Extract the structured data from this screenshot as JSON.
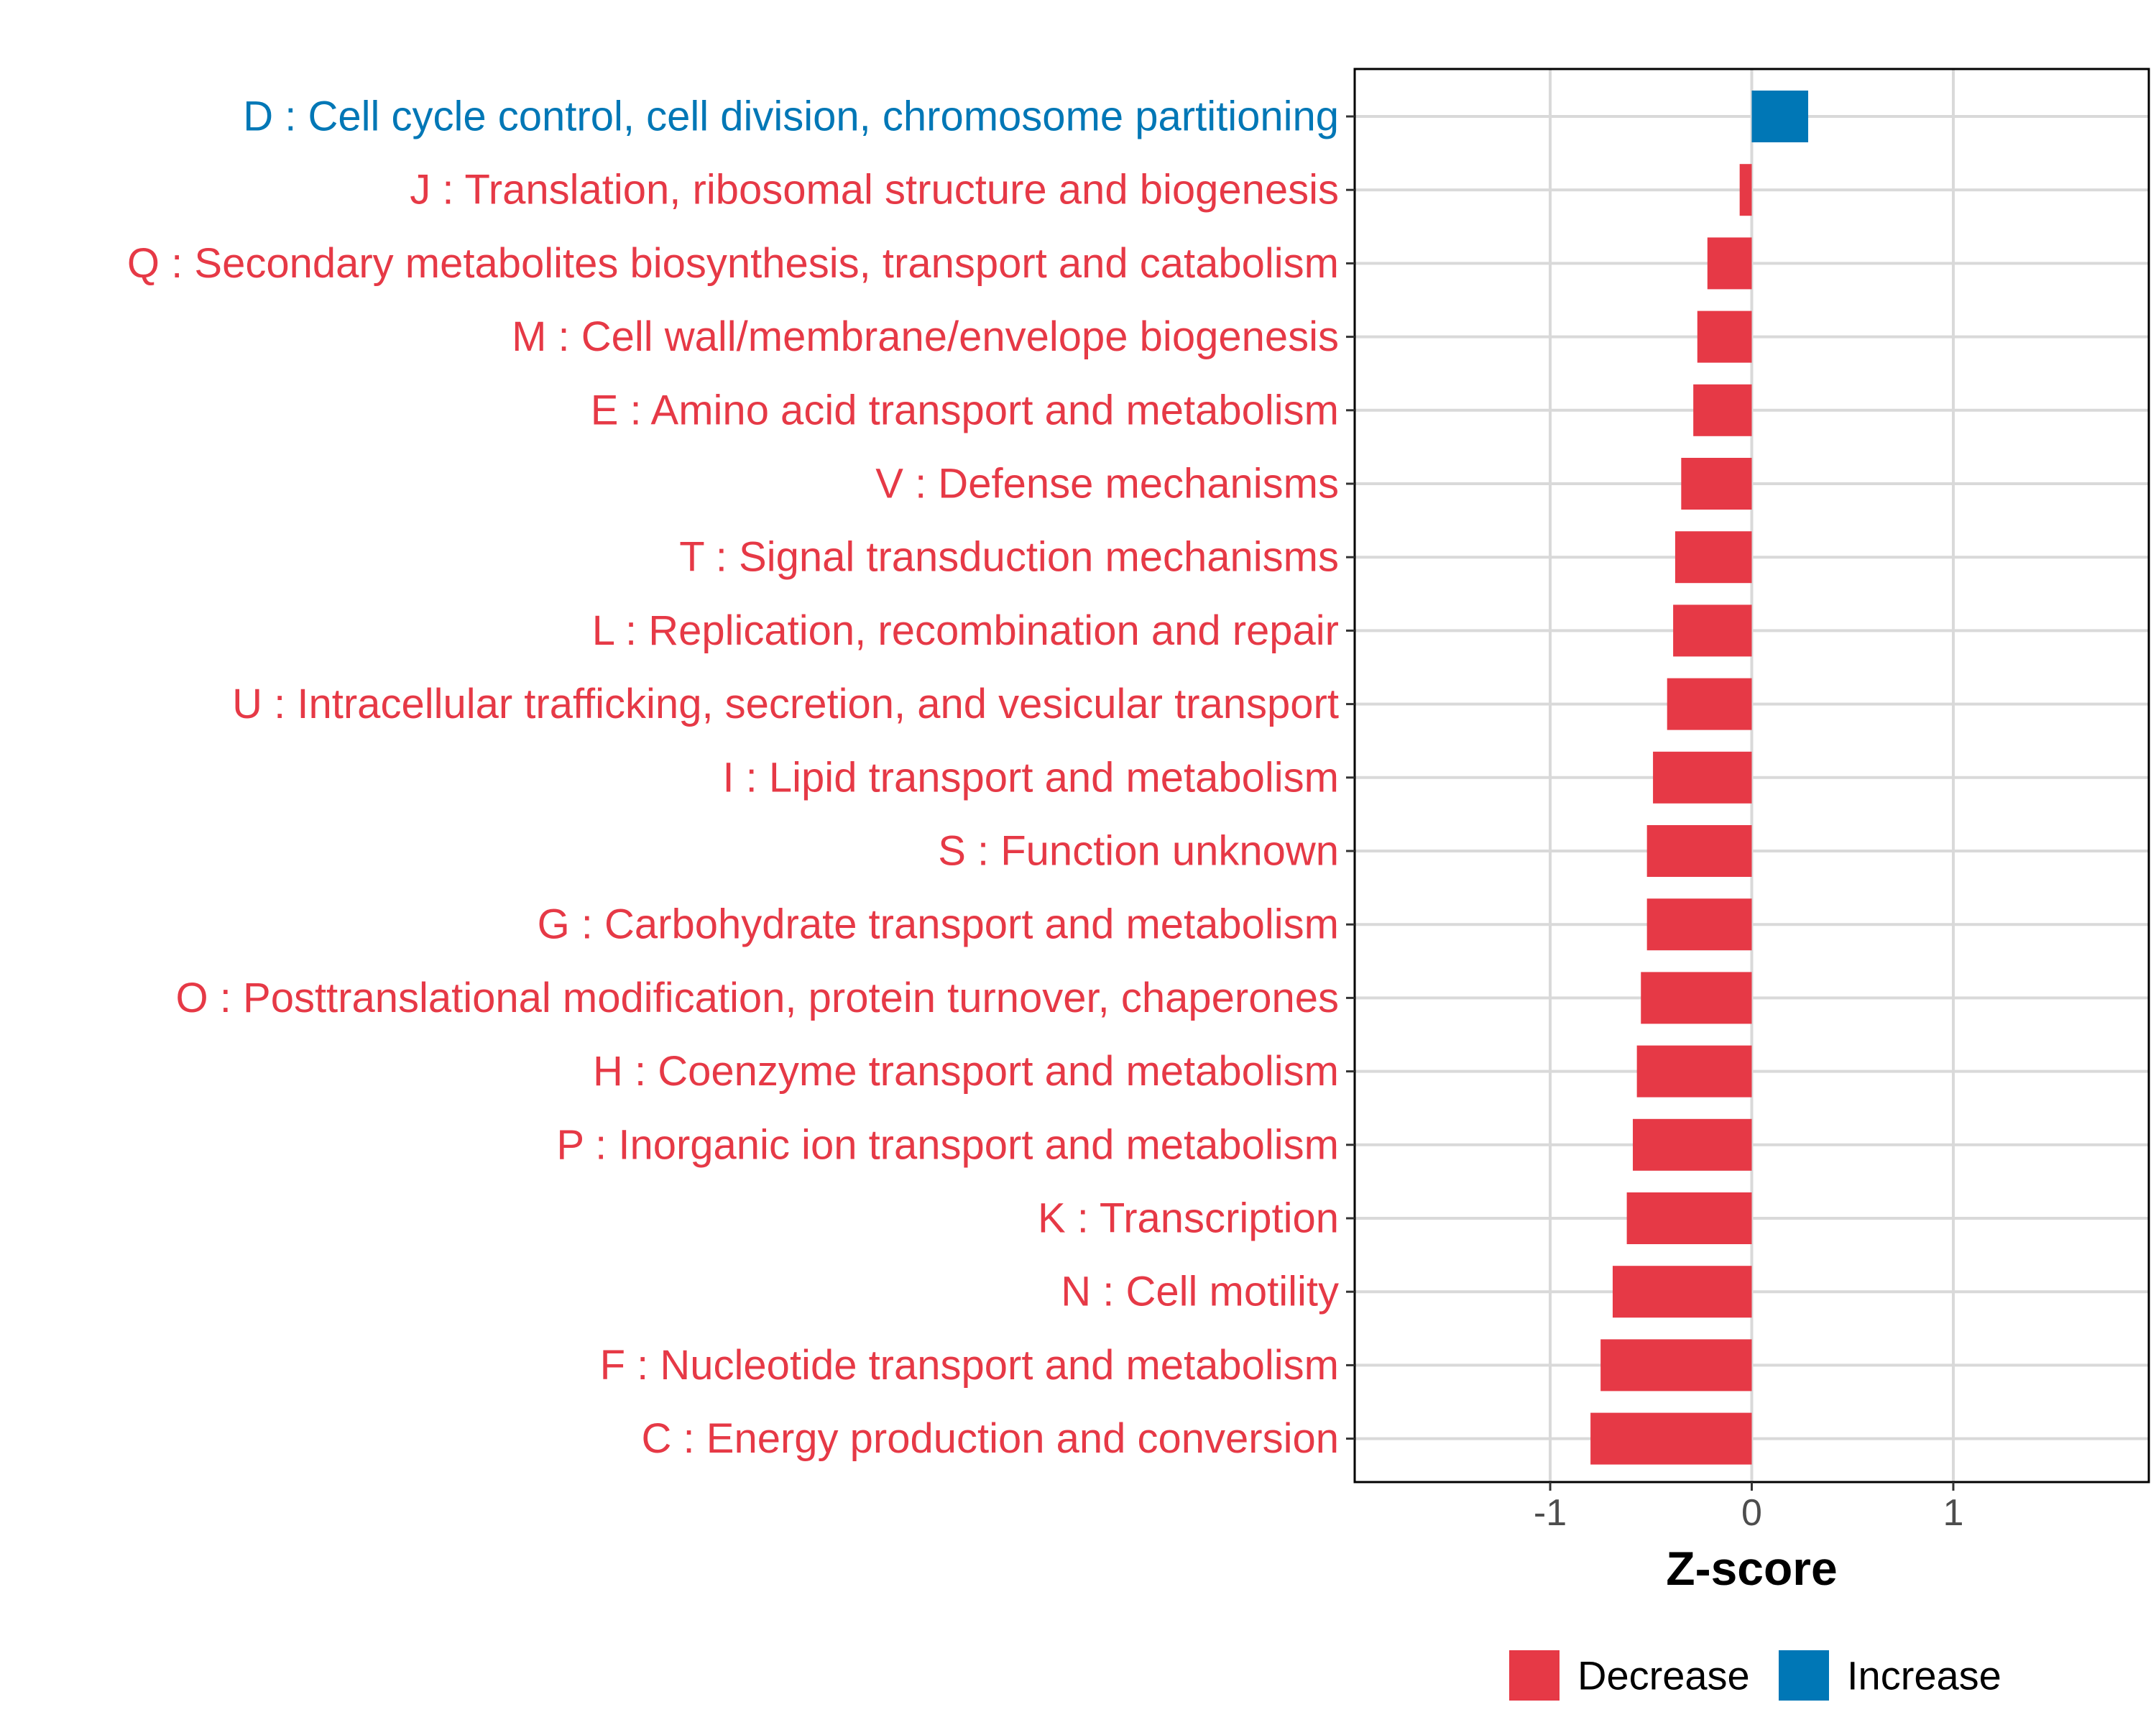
{
  "colors": {
    "decrease": "#e63946",
    "increase": "#0077b6",
    "grid": "#d9d9d9",
    "tick": "#4d4d4d"
  },
  "chart_data": {
    "type": "bar",
    "orientation": "horizontal",
    "title": "",
    "xlabel": "Z-score",
    "ylabel": "",
    "xlim": [
      -1.97,
      1.97
    ],
    "xticks": [
      -1,
      0,
      1
    ],
    "xtick_labels": [
      "-1",
      "0",
      "1"
    ],
    "grid": true,
    "legend_position": "bottom",
    "legend": [
      {
        "key": "Decrease",
        "label": "Decrease"
      },
      {
        "key": "Increase",
        "label": "Increase"
      }
    ],
    "categories": [
      "D : Cell cycle control, cell division, chromosome partitioning",
      "J : Translation, ribosomal structure and biogenesis",
      "Q : Secondary metabolites biosynthesis, transport and catabolism",
      "M : Cell wall/membrane/envelope biogenesis",
      "E : Amino acid transport and metabolism",
      "V : Defense mechanisms",
      "T : Signal transduction mechanisms",
      "L : Replication, recombination and repair",
      "U : Intracellular trafficking, secretion, and vesicular transport",
      "I : Lipid transport and metabolism",
      "S : Function unknown",
      "G : Carbohydrate transport and metabolism",
      "O : Posttranslational modification, protein turnover, chaperones",
      "H : Coenzyme transport and metabolism",
      "P : Inorganic ion transport and metabolism",
      "K : Transcription",
      "N : Cell motility",
      "F : Nucleotide transport and metabolism",
      "C : Energy production and conversion"
    ],
    "values": [
      0.28,
      -0.06,
      -0.22,
      -0.27,
      -0.29,
      -0.35,
      -0.38,
      -0.39,
      -0.42,
      -0.49,
      -0.52,
      -0.52,
      -0.55,
      -0.57,
      -0.59,
      -0.62,
      -0.69,
      -0.75,
      -0.8
    ],
    "groups": [
      "Increase",
      "Decrease",
      "Decrease",
      "Decrease",
      "Decrease",
      "Decrease",
      "Decrease",
      "Decrease",
      "Decrease",
      "Decrease",
      "Decrease",
      "Decrease",
      "Decrease",
      "Decrease",
      "Decrease",
      "Decrease",
      "Decrease",
      "Decrease",
      "Decrease"
    ]
  }
}
